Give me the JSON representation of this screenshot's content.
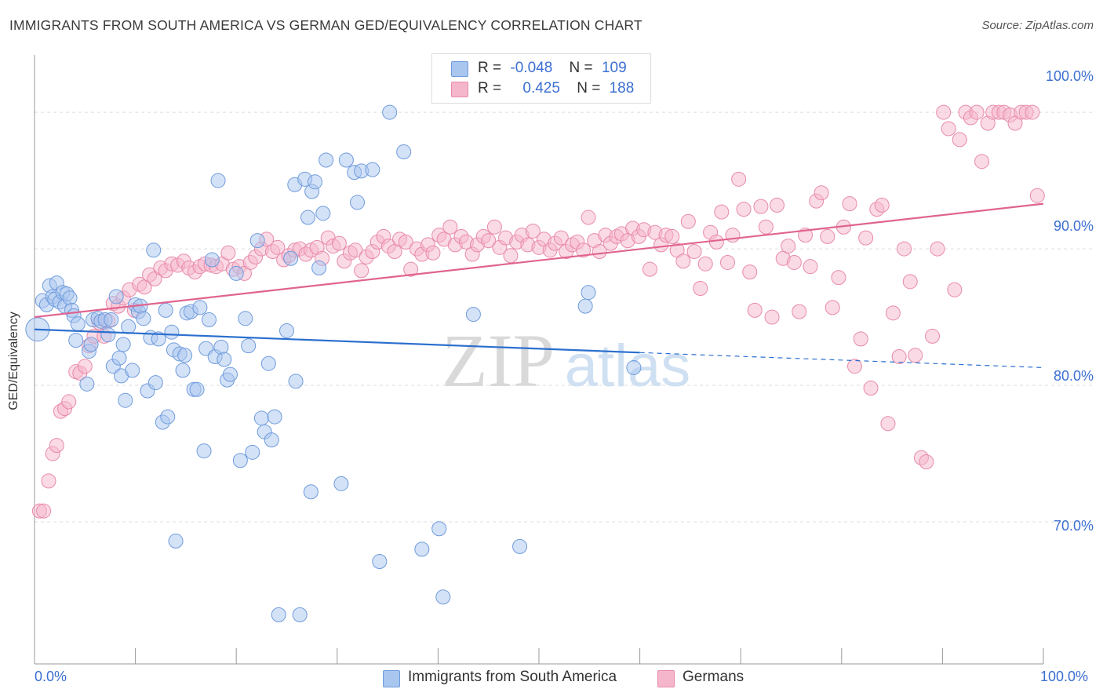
{
  "title": "IMMIGRANTS FROM SOUTH AMERICA VS GERMAN GED/EQUIVALENCY CORRELATION CHART",
  "source": "Source: ZipAtlas.com",
  "watermark": {
    "zip": "ZIP",
    "atlas": "atlas"
  },
  "colors": {
    "blue_fill": "#a9c6ef",
    "blue_stroke": "#6e9bdc",
    "blue_line": "#2b6fcf",
    "pink_fill": "#f5b6cb",
    "pink_stroke": "#e88aab",
    "pink_line": "#e0648f",
    "tick_label": "#3b6fd1",
    "grid": "#dddddd"
  },
  "legend": {
    "rows": [
      {
        "r_label": "R =",
        "r_value": "-0.048",
        "n_label": "N =",
        "n_value": "109"
      },
      {
        "r_label": "R =",
        "r_value": "0.425",
        "n_label": "N =",
        "n_value": "188"
      }
    ]
  },
  "chart_data": {
    "type": "scatter",
    "title": "IMMIGRANTS FROM SOUTH AMERICA VS GERMAN GED/EQUIVALENCY CORRELATION CHART",
    "xlabel": "",
    "ylabel": "GED/Equivalency",
    "xlim": [
      0,
      100
    ],
    "ylim": [
      59.6,
      104.2
    ],
    "x_tick_labels": [
      "0.0%",
      "100.0%"
    ],
    "y_ticks": [
      70,
      80,
      90,
      100
    ],
    "y_tick_labels": [
      "70.0%",
      "80.0%",
      "90.0%",
      "100.0%"
    ],
    "grid": true,
    "series": [
      {
        "name": "Immigrants from South America",
        "color": "#6e9bdc",
        "trend": {
          "x": [
            0,
            60
          ],
          "y": [
            84.1,
            82.4
          ],
          "dashed_extension": {
            "x": [
              60,
              100
            ],
            "y": [
              82.4,
              81.3
            ]
          }
        },
        "points": [
          [
            0.3,
            84.1
          ],
          [
            0.8,
            86.2
          ],
          [
            1.2,
            85.9
          ],
          [
            1.5,
            87.3
          ],
          [
            1.8,
            86.5
          ],
          [
            2.0,
            86.3
          ],
          [
            2.2,
            87.5
          ],
          [
            2.5,
            86.1
          ],
          [
            2.8,
            86.8
          ],
          [
            3.0,
            85.8
          ],
          [
            3.2,
            86.7
          ],
          [
            3.5,
            86.4
          ],
          [
            3.7,
            85.5
          ],
          [
            3.9,
            85.1
          ],
          [
            4.1,
            83.3
          ],
          [
            4.3,
            84.5
          ],
          [
            5.2,
            80.1
          ],
          [
            5.4,
            82.5
          ],
          [
            5.6,
            83.0
          ],
          [
            5.8,
            84.8
          ],
          [
            6.3,
            84.9
          ],
          [
            6.6,
            84.7
          ],
          [
            7.0,
            84.8
          ],
          [
            7.3,
            83.7
          ],
          [
            7.6,
            84.8
          ],
          [
            7.8,
            81.4
          ],
          [
            8.1,
            86.5
          ],
          [
            8.4,
            82.0
          ],
          [
            8.6,
            80.7
          ],
          [
            8.8,
            83.0
          ],
          [
            9.0,
            78.9
          ],
          [
            9.3,
            84.3
          ],
          [
            9.7,
            81.1
          ],
          [
            10.0,
            85.9
          ],
          [
            10.3,
            85.4
          ],
          [
            10.5,
            85.8
          ],
          [
            10.8,
            84.9
          ],
          [
            11.2,
            79.6
          ],
          [
            11.5,
            83.5
          ],
          [
            11.8,
            89.9
          ],
          [
            12.0,
            80.2
          ],
          [
            12.3,
            83.4
          ],
          [
            12.7,
            77.3
          ],
          [
            13.0,
            85.5
          ],
          [
            13.2,
            77.7
          ],
          [
            13.6,
            83.9
          ],
          [
            13.8,
            82.6
          ],
          [
            14.0,
            68.6
          ],
          [
            14.4,
            82.3
          ],
          [
            14.7,
            81.1
          ],
          [
            14.9,
            82.2
          ],
          [
            15.1,
            85.3
          ],
          [
            15.5,
            85.4
          ],
          [
            15.8,
            79.7
          ],
          [
            16.1,
            79.7
          ],
          [
            16.4,
            85.7
          ],
          [
            16.8,
            75.2
          ],
          [
            17.0,
            82.7
          ],
          [
            17.3,
            84.8
          ],
          [
            17.6,
            89.2
          ],
          [
            17.9,
            82.1
          ],
          [
            18.2,
            95.0
          ],
          [
            18.5,
            82.8
          ],
          [
            18.8,
            81.9
          ],
          [
            19.1,
            80.4
          ],
          [
            19.4,
            80.8
          ],
          [
            20.0,
            88.2
          ],
          [
            20.4,
            74.5
          ],
          [
            20.9,
            84.9
          ],
          [
            21.2,
            82.9
          ],
          [
            21.6,
            75.1
          ],
          [
            22.1,
            90.6
          ],
          [
            22.5,
            77.6
          ],
          [
            22.8,
            76.6
          ],
          [
            23.2,
            81.6
          ],
          [
            23.5,
            76.0
          ],
          [
            23.8,
            77.7
          ],
          [
            24.2,
            63.2
          ],
          [
            25.0,
            84.0
          ],
          [
            25.4,
            89.3
          ],
          [
            25.8,
            94.7
          ],
          [
            25.9,
            80.3
          ],
          [
            26.3,
            63.2
          ],
          [
            26.8,
            95.1
          ],
          [
            27.1,
            92.3
          ],
          [
            27.5,
            94.2
          ],
          [
            27.8,
            94.9
          ],
          [
            27.4,
            72.2
          ],
          [
            28.2,
            88.6
          ],
          [
            28.6,
            92.6
          ],
          [
            28.9,
            96.5
          ],
          [
            30.4,
            72.8
          ],
          [
            30.9,
            96.5
          ],
          [
            31.7,
            95.6
          ],
          [
            32.0,
            93.4
          ],
          [
            32.4,
            95.7
          ],
          [
            33.5,
            95.8
          ],
          [
            34.2,
            67.1
          ],
          [
            35.2,
            100.0
          ],
          [
            36.6,
            97.1
          ],
          [
            38.4,
            68.0
          ],
          [
            40.1,
            69.5
          ],
          [
            40.5,
            64.5
          ],
          [
            43.5,
            85.2
          ],
          [
            48.1,
            68.2
          ],
          [
            54.6,
            85.8
          ],
          [
            54.9,
            86.8
          ],
          [
            59.4,
            81.3
          ]
        ]
      },
      {
        "name": "Germans",
        "color": "#e88aab",
        "trend": {
          "x": [
            0,
            100
          ],
          "y": [
            85.0,
            93.3
          ]
        },
        "points": [
          [
            0.5,
            70.8
          ],
          [
            0.9,
            70.8
          ],
          [
            1.4,
            73.0
          ],
          [
            1.8,
            75.0
          ],
          [
            2.2,
            75.6
          ],
          [
            2.6,
            78.1
          ],
          [
            3.0,
            78.3
          ],
          [
            3.4,
            78.8
          ],
          [
            4.1,
            81.0
          ],
          [
            4.5,
            80.9
          ],
          [
            5.0,
            81.4
          ],
          [
            5.4,
            82.9
          ],
          [
            5.9,
            83.6
          ],
          [
            6.4,
            84.6
          ],
          [
            6.9,
            83.6
          ],
          [
            7.3,
            84.7
          ],
          [
            7.8,
            86.0
          ],
          [
            8.3,
            85.8
          ],
          [
            8.8,
            86.4
          ],
          [
            9.4,
            87.0
          ],
          [
            9.9,
            85.5
          ],
          [
            10.4,
            87.4
          ],
          [
            10.9,
            87.2
          ],
          [
            11.4,
            88.1
          ],
          [
            11.9,
            87.8
          ],
          [
            12.5,
            88.6
          ],
          [
            13.0,
            88.4
          ],
          [
            13.6,
            88.9
          ],
          [
            14.2,
            88.8
          ],
          [
            14.8,
            89.1
          ],
          [
            15.3,
            88.6
          ],
          [
            15.9,
            88.3
          ],
          [
            16.4,
            88.7
          ],
          [
            16.9,
            88.9
          ],
          [
            17.5,
            88.8
          ],
          [
            18.0,
            88.7
          ],
          [
            18.6,
            88.9
          ],
          [
            19.2,
            89.7
          ],
          [
            19.7,
            88.5
          ],
          [
            20.3,
            88.7
          ],
          [
            20.8,
            88.2
          ],
          [
            21.4,
            89.0
          ],
          [
            21.9,
            89.4
          ],
          [
            22.5,
            90.0
          ],
          [
            23.0,
            90.7
          ],
          [
            23.6,
            89.8
          ],
          [
            24.1,
            90.1
          ],
          [
            24.7,
            89.2
          ],
          [
            25.2,
            89.5
          ],
          [
            25.8,
            89.9
          ],
          [
            26.3,
            90.0
          ],
          [
            26.9,
            89.6
          ],
          [
            27.4,
            89.9
          ],
          [
            28.0,
            90.1
          ],
          [
            28.5,
            89.3
          ],
          [
            29.1,
            90.8
          ],
          [
            29.6,
            90.2
          ],
          [
            30.2,
            90.4
          ],
          [
            30.7,
            89.1
          ],
          [
            31.3,
            89.7
          ],
          [
            31.8,
            89.9
          ],
          [
            32.4,
            88.4
          ],
          [
            32.9,
            89.4
          ],
          [
            33.5,
            89.8
          ],
          [
            34.0,
            90.5
          ],
          [
            34.6,
            90.9
          ],
          [
            35.1,
            90.2
          ],
          [
            35.7,
            89.8
          ],
          [
            36.2,
            90.7
          ],
          [
            36.8,
            90.5
          ],
          [
            37.3,
            88.5
          ],
          [
            37.9,
            90.0
          ],
          [
            38.4,
            89.6
          ],
          [
            39.0,
            90.3
          ],
          [
            39.5,
            89.7
          ],
          [
            40.1,
            91.0
          ],
          [
            40.6,
            90.7
          ],
          [
            41.2,
            91.6
          ],
          [
            41.7,
            90.3
          ],
          [
            42.3,
            90.9
          ],
          [
            42.8,
            90.5
          ],
          [
            43.4,
            89.6
          ],
          [
            43.9,
            90.3
          ],
          [
            44.5,
            90.9
          ],
          [
            45.0,
            90.6
          ],
          [
            45.6,
            91.6
          ],
          [
            46.1,
            90.1
          ],
          [
            46.7,
            90.8
          ],
          [
            47.2,
            89.5
          ],
          [
            47.8,
            90.5
          ],
          [
            48.3,
            91.0
          ],
          [
            48.9,
            90.3
          ],
          [
            49.4,
            91.3
          ],
          [
            50.0,
            90.1
          ],
          [
            50.5,
            90.7
          ],
          [
            51.1,
            89.9
          ],
          [
            51.6,
            90.4
          ],
          [
            52.2,
            90.8
          ],
          [
            52.7,
            89.8
          ],
          [
            53.3,
            90.3
          ],
          [
            53.8,
            90.5
          ],
          [
            54.4,
            89.9
          ],
          [
            54.9,
            92.3
          ],
          [
            55.5,
            90.6
          ],
          [
            56.0,
            89.8
          ],
          [
            56.6,
            91.0
          ],
          [
            57.1,
            90.4
          ],
          [
            57.7,
            90.9
          ],
          [
            58.2,
            91.1
          ],
          [
            58.8,
            90.6
          ],
          [
            59.3,
            91.5
          ],
          [
            59.9,
            90.9
          ],
          [
            60.4,
            91.4
          ],
          [
            61.0,
            88.5
          ],
          [
            61.5,
            91.2
          ],
          [
            62.1,
            90.3
          ],
          [
            62.6,
            91.0
          ],
          [
            63.2,
            90.9
          ],
          [
            63.7,
            89.9
          ],
          [
            64.3,
            89.1
          ],
          [
            64.8,
            92.0
          ],
          [
            65.4,
            89.8
          ],
          [
            66.0,
            87.1
          ],
          [
            66.5,
            88.9
          ],
          [
            67.0,
            91.2
          ],
          [
            67.6,
            90.5
          ],
          [
            68.1,
            92.7
          ],
          [
            68.7,
            89.0
          ],
          [
            69.2,
            91.0
          ],
          [
            69.8,
            95.1
          ],
          [
            70.3,
            92.9
          ],
          [
            70.9,
            88.3
          ],
          [
            71.4,
            85.5
          ],
          [
            72.0,
            93.1
          ],
          [
            72.5,
            91.6
          ],
          [
            73.1,
            85.0
          ],
          [
            73.6,
            93.2
          ],
          [
            74.2,
            89.3
          ],
          [
            74.7,
            90.2
          ],
          [
            75.3,
            89.0
          ],
          [
            75.8,
            85.4
          ],
          [
            76.4,
            91.0
          ],
          [
            76.9,
            88.7
          ],
          [
            77.5,
            93.5
          ],
          [
            78.0,
            94.1
          ],
          [
            78.6,
            90.9
          ],
          [
            79.1,
            85.7
          ],
          [
            79.7,
            87.9
          ],
          [
            80.2,
            91.6
          ],
          [
            80.8,
            93.3
          ],
          [
            81.3,
            81.4
          ],
          [
            81.9,
            83.4
          ],
          [
            82.4,
            90.8
          ],
          [
            82.9,
            79.8
          ],
          [
            83.5,
            92.9
          ],
          [
            84.0,
            93.2
          ],
          [
            84.6,
            77.2
          ],
          [
            85.1,
            85.3
          ],
          [
            85.7,
            82.1
          ],
          [
            86.2,
            90.0
          ],
          [
            86.8,
            87.6
          ],
          [
            87.3,
            82.2
          ],
          [
            87.9,
            74.7
          ],
          [
            88.4,
            74.4
          ],
          [
            89.0,
            83.6
          ],
          [
            89.5,
            90.0
          ],
          [
            90.1,
            100.0
          ],
          [
            90.6,
            98.8
          ],
          [
            91.2,
            87.0
          ],
          [
            91.7,
            98.0
          ],
          [
            92.3,
            100.0
          ],
          [
            92.8,
            99.6
          ],
          [
            93.4,
            100.0
          ],
          [
            93.9,
            96.4
          ],
          [
            94.5,
            99.2
          ],
          [
            95.0,
            100.0
          ],
          [
            95.6,
            100.0
          ],
          [
            96.1,
            100.0
          ],
          [
            96.7,
            99.8
          ],
          [
            97.2,
            99.2
          ],
          [
            97.8,
            100.0
          ],
          [
            98.3,
            100.0
          ],
          [
            98.9,
            100.0
          ],
          [
            99.4,
            93.9
          ]
        ]
      }
    ]
  }
}
